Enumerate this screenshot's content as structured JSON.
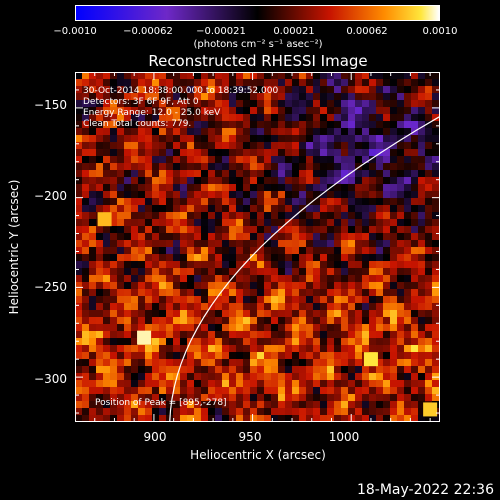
{
  "colorbar": {
    "ticks": [
      "−0.0010",
      "−0.00062",
      "−0.00021",
      "0.00021",
      "0.00062",
      "0.0010"
    ],
    "unit": "(photons cm⁻² s⁻¹ asec⁻²)"
  },
  "chart_data": {
    "type": "heatmap",
    "title": "Reconstructed RHESSI Image",
    "xlabel": "Heliocentric X (arcsec)",
    "ylabel": "Heliocentric Y (arcsec)",
    "xlim": [
      860,
      1045
    ],
    "ylim": [
      -325,
      -130
    ],
    "xticks": [
      "900",
      "950",
      "1000"
    ],
    "yticks": [
      "−150",
      "−200",
      "−250",
      "−300"
    ],
    "colorscale_range": [
      -0.001,
      0.001
    ],
    "annotations": [
      "30-Oct-2014 18:38:00.000 to 18:39:52.000",
      "Detectors: 3F 6F 9F, Att 0",
      "Energy Range: 12.0 - 25.0 keV",
      "Clean     Total counts: 779."
    ],
    "peak_label": "Position of Peak = [895,-278]"
  },
  "footer": {
    "datestamp": "18-May-2022 22:36"
  }
}
